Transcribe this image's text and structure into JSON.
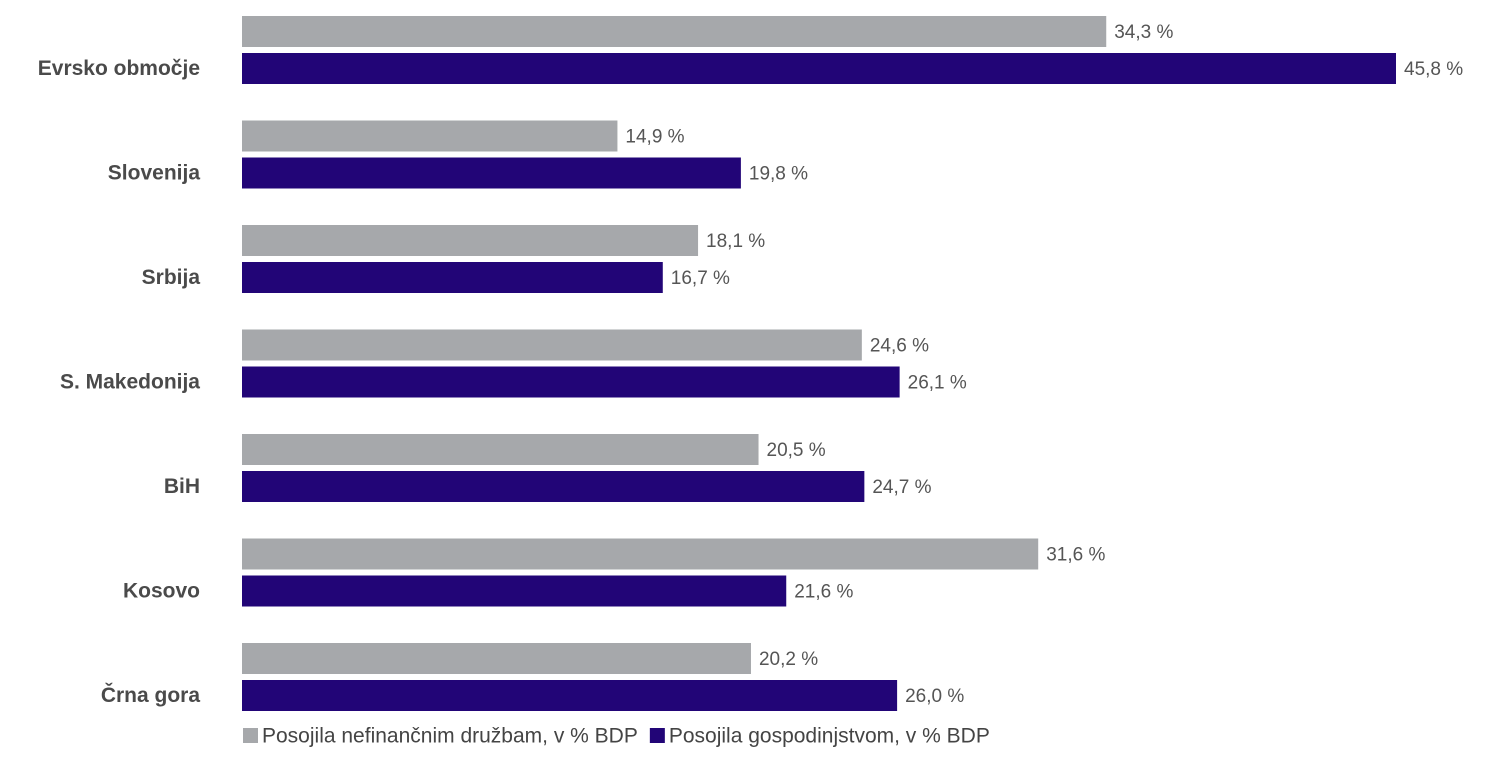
{
  "chart_data": {
    "type": "bar",
    "orientation": "horizontal",
    "categories": [
      "Evrsko območje",
      "Slovenija",
      "Srbija",
      "S. Makedonija",
      "BiH",
      "Kosovo",
      "Črna gora"
    ],
    "series": [
      {
        "name": "Posojila nefinančnim družbam, v % BDP",
        "color": "#a6a8ab",
        "values": [
          34.3,
          14.9,
          18.1,
          24.6,
          20.5,
          31.6,
          20.2
        ],
        "labels": [
          "34,3 %",
          "14,9 %",
          "18,1 %",
          "24,6 %",
          "20,5 %",
          "31,6 %",
          "20,2 %"
        ]
      },
      {
        "name": "Posojila gospodinjstvom, v % BDP",
        "color": "#220577",
        "values": [
          45.8,
          19.8,
          16.7,
          26.1,
          24.7,
          21.6,
          26.0
        ],
        "labels": [
          "45,8 %",
          "19,8 %",
          "16,7 %",
          "26,1 %",
          "24,7 %",
          "21,6 %",
          "26,0 %"
        ]
      }
    ],
    "xlim": [
      0,
      45.8
    ],
    "grid": false,
    "legend_position": "bottom"
  }
}
